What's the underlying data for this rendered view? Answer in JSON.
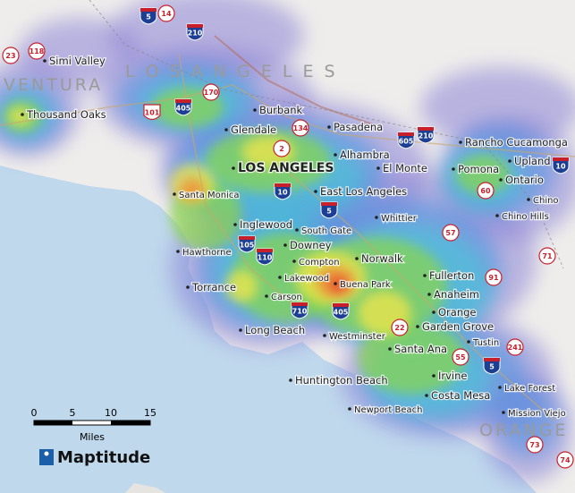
{
  "map": {
    "regions": [
      "VENTURA",
      "L O S   A N G E L E S",
      "ORANGE"
    ],
    "places": [
      "Simi Valley",
      "Thousand Oaks",
      "Burbank",
      "Pasadena",
      "Glendale",
      "Alhambra",
      "LOS ANGELES",
      "El Monte",
      "Pomona",
      "Rancho Cucamonga",
      "Upland",
      "Ontario",
      "Chino",
      "Chino Hills",
      "Santa Monica",
      "East Los Angeles",
      "Whittier",
      "Inglewood",
      "South Gate",
      "Downey",
      "Hawthorne",
      "Compton",
      "Norwalk",
      "Fullerton",
      "Lakewood",
      "Buena Park",
      "Anaheim",
      "Torrance",
      "Carson",
      "Orange",
      "Long Beach",
      "Westminster",
      "Garden Grove",
      "Santa Ana",
      "Tustin",
      "Huntington Beach",
      "Irvine",
      "Lake Forest",
      "Costa Mesa",
      "Newport Beach",
      "Mission Viejo"
    ],
    "shields": [
      "5",
      "210",
      "405",
      "605",
      "210",
      "10",
      "5",
      "10",
      "105",
      "110",
      "710",
      "405",
      "5",
      "14",
      "23",
      "118",
      "170",
      "101",
      "134",
      "2",
      "60",
      "57",
      "71",
      "91",
      "22",
      "55",
      "241",
      "73",
      "74"
    ],
    "scale": {
      "ticks": [
        "0",
        "5",
        "10",
        "15"
      ],
      "unit": "Miles"
    },
    "logo": "Maptitude"
  }
}
